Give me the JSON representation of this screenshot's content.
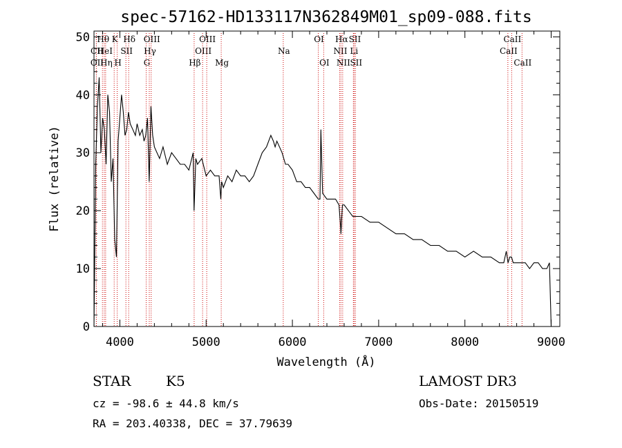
{
  "chart_data": {
    "type": "line",
    "title": "spec-57162-HD133117N362849M01_sp09-088.fits",
    "xlabel": "Wavelength (Å)",
    "ylabel": "Flux (relative)",
    "xlim": [
      3700,
      9100
    ],
    "ylim": [
      0,
      51
    ],
    "xticks": [
      4000,
      5000,
      6000,
      7000,
      8000,
      9000
    ],
    "yticks": [
      0,
      10,
      20,
      30,
      40,
      50
    ],
    "series": [
      {
        "name": "spectrum",
        "x": [
          3700,
          3720,
          3740,
          3760,
          3780,
          3800,
          3820,
          3840,
          3860,
          3880,
          3900,
          3920,
          3940,
          3960,
          3980,
          4000,
          4020,
          4040,
          4060,
          4080,
          4100,
          4120,
          4150,
          4180,
          4200,
          4230,
          4260,
          4280,
          4300,
          4320,
          4340,
          4360,
          4380,
          4400,
          4430,
          4460,
          4500,
          4550,
          4600,
          4650,
          4700,
          4750,
          4800,
          4850,
          4860,
          4880,
          4900,
          4950,
          5000,
          5050,
          5100,
          5150,
          5170,
          5180,
          5200,
          5250,
          5300,
          5350,
          5400,
          5450,
          5500,
          5550,
          5600,
          5650,
          5700,
          5750,
          5780,
          5800,
          5820,
          5850,
          5880,
          5900,
          5920,
          5950,
          6000,
          6050,
          6100,
          6150,
          6200,
          6250,
          6300,
          6320,
          6330,
          6350,
          6400,
          6450,
          6500,
          6540,
          6560,
          6563,
          6580,
          6600,
          6650,
          6700,
          6750,
          6800,
          6900,
          7000,
          7100,
          7200,
          7300,
          7400,
          7500,
          7600,
          7700,
          7800,
          7900,
          8000,
          8100,
          8200,
          8300,
          8400,
          8450,
          8480,
          8500,
          8520,
          8540,
          8560,
          8600,
          8650,
          8700,
          8750,
          8800,
          8850,
          8900,
          8950,
          8980,
          9000
        ],
        "values": [
          0,
          28,
          38,
          43,
          30,
          36,
          34,
          28,
          40,
          37,
          25,
          29,
          15,
          12,
          32,
          36,
          40,
          37,
          33,
          34,
          37,
          35,
          34,
          33,
          35,
          33,
          34,
          32,
          33,
          36,
          25,
          38,
          33,
          31,
          30,
          29,
          31,
          28,
          30,
          29,
          28,
          28,
          27,
          30,
          20,
          29,
          28,
          29,
          26,
          27,
          26,
          26,
          22,
          25,
          24,
          26,
          25,
          27,
          26,
          26,
          25,
          26,
          28,
          30,
          31,
          33,
          32,
          31,
          32,
          31,
          30,
          29,
          28,
          28,
          27,
          25,
          25,
          24,
          24,
          23,
          22,
          22,
          34,
          23,
          22,
          22,
          22,
          21,
          17,
          16,
          21,
          21,
          20,
          19,
          19,
          19,
          18,
          18,
          17,
          16,
          16,
          15,
          15,
          14,
          14,
          13,
          13,
          12,
          13,
          12,
          12,
          11,
          11,
          13,
          11,
          12,
          12,
          11,
          11,
          11,
          11,
          10,
          11,
          11,
          10,
          10,
          11,
          0
        ]
      }
    ],
    "lines": [
      {
        "name": "CII",
        "wl": 3727,
        "row": 2
      },
      {
        "name": "OII",
        "wl": 3728,
        "row": 3
      },
      {
        "name": "Hθ",
        "wl": 3798,
        "row": 1
      },
      {
        "name": "HeI",
        "wl": 3819,
        "row": 2
      },
      {
        "name": "Hη",
        "wl": 3835,
        "row": 3
      },
      {
        "name": "K",
        "wl": 3934,
        "row": 1
      },
      {
        "name": "H",
        "wl": 3969,
        "row": 3
      },
      {
        "name": "SII",
        "wl": 4070,
        "row": 2
      },
      {
        "name": "Hδ",
        "wl": 4102,
        "row": 1
      },
      {
        "name": "G",
        "wl": 4305,
        "row": 3
      },
      {
        "name": "Hγ",
        "wl": 4341,
        "row": 2
      },
      {
        "name": "OIII",
        "wl": 4363,
        "row": 1
      },
      {
        "name": "Hβ",
        "wl": 4861,
        "row": 3
      },
      {
        "name": "OIII",
        "wl": 4959,
        "row": 2
      },
      {
        "name": "OIII",
        "wl": 5007,
        "row": 1
      },
      {
        "name": "Mg",
        "wl": 5175,
        "row": 3
      },
      {
        "name": "Na",
        "wl": 5894,
        "row": 2
      },
      {
        "name": "OI",
        "wl": 6300,
        "row": 1
      },
      {
        "name": "OI",
        "wl": 6363,
        "row": 3
      },
      {
        "name": "NII",
        "wl": 6548,
        "row": 2
      },
      {
        "name": "Hα",
        "wl": 6563,
        "row": 1
      },
      {
        "name": "NII",
        "wl": 6583,
        "row": 3
      },
      {
        "name": "Li",
        "wl": 6707,
        "row": 2
      },
      {
        "name": "SII",
        "wl": 6716,
        "row": 1
      },
      {
        "name": "SII",
        "wl": 6731,
        "row": 3
      },
      {
        "name": "CaII",
        "wl": 8498,
        "row": 2
      },
      {
        "name": "CaII",
        "wl": 8542,
        "row": 1
      },
      {
        "name": "CaII",
        "wl": 8662,
        "row": 3
      }
    ],
    "colors": {
      "lines": "#cc0000",
      "spectrum": "#000000",
      "axes": "#000000"
    }
  },
  "info": {
    "object_class": "STAR",
    "subclass": "K5",
    "survey": "LAMOST DR3",
    "cz": "cz = -98.6 ± 44.8 km/s",
    "obs_date": "Obs-Date: 20150519",
    "coords": "RA = 203.40338, DEC =  37.79639"
  }
}
